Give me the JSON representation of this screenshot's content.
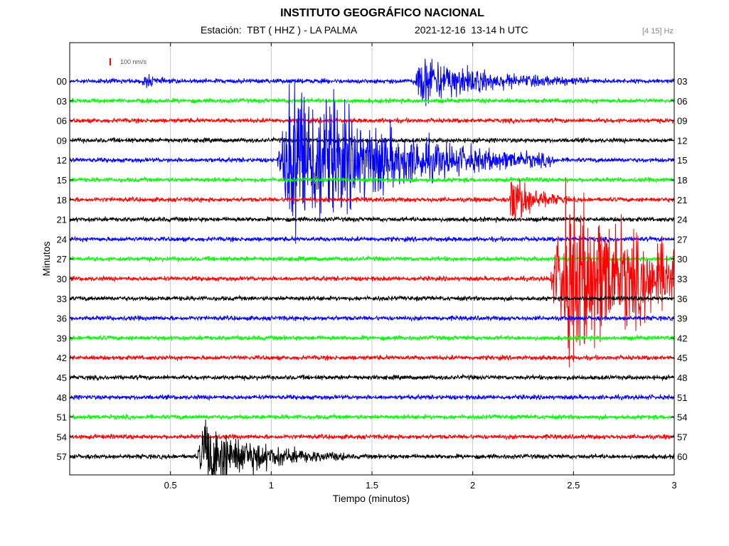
{
  "header": {
    "title": "INSTITUTO GEOGRÁFICO NACIONAL",
    "station": "Estación:  TBT ( HHZ ) - LA PALMA",
    "datetime": "2021-12-16  13-14 h UTC",
    "band": "[4 15] Hz"
  },
  "chart_data": {
    "type": "line",
    "title": "INSTITUTO GEOGRÁFICO NACIONAL",
    "xlabel": "Tiempo (minutos)",
    "ylabel": "Minutos",
    "xlim": [
      0,
      3
    ],
    "x_ticks": [
      "0.5",
      "1",
      "1.5",
      "2",
      "2.5",
      "3"
    ],
    "x_tick_values": [
      0.5,
      1,
      1.5,
      2,
      2.5,
      3
    ],
    "left_labels": [
      "00",
      "03",
      "06",
      "09",
      "12",
      "15",
      "18",
      "21",
      "24",
      "27",
      "30",
      "33",
      "36",
      "39",
      "42",
      "45",
      "48",
      "51",
      "54",
      "57"
    ],
    "right_labels": [
      "03",
      "06",
      "09",
      "12",
      "15",
      "18",
      "21",
      "24",
      "27",
      "30",
      "33",
      "36",
      "39",
      "42",
      "45",
      "48",
      "51",
      "54",
      "57",
      "60"
    ],
    "trace_colors": [
      "#0000ff",
      "#00ff00",
      "#ff0000",
      "#000000"
    ],
    "scale_label": "100 nm/s",
    "grid": true,
    "events": [
      {
        "row": 0,
        "start": 0.36,
        "duration": 0.05,
        "amp": 1.2
      },
      {
        "row": 0,
        "start": 1.7,
        "duration": 0.35,
        "amp": 4
      },
      {
        "row": 4,
        "start": 1.03,
        "duration": 0.55,
        "amp": 14
      },
      {
        "row": 6,
        "start": 2.18,
        "duration": 0.12,
        "amp": 5
      },
      {
        "row": 10,
        "start": 2.38,
        "duration": 0.62,
        "amp": 14
      },
      {
        "row": 19,
        "start": 0.63,
        "duration": 0.3,
        "amp": 6
      }
    ]
  }
}
